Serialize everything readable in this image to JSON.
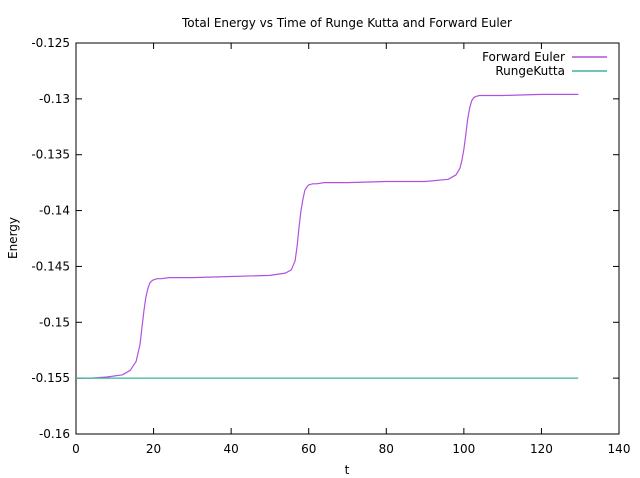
{
  "chart_data": {
    "type": "line",
    "title": "Total Energy vs Time of Runge Kutta and Forward Euler",
    "xlabel": "t",
    "ylabel": "Energy",
    "xlim": [
      0,
      140
    ],
    "ylim": [
      -0.16,
      -0.125
    ],
    "xticks": [
      0,
      20,
      40,
      60,
      80,
      100,
      120,
      140
    ],
    "yticks": [
      -0.16,
      -0.155,
      -0.15,
      -0.145,
      -0.14,
      -0.135,
      -0.13,
      -0.125
    ],
    "xtick_labels": [
      "0",
      "20",
      "40",
      "60",
      "80",
      "100",
      "120",
      "140"
    ],
    "ytick_labels": [
      "-0.16",
      "-0.155",
      "-0.15",
      "-0.145",
      "-0.14",
      "-0.135",
      "-0.13",
      "-0.125"
    ],
    "grid": false,
    "legend_position": "top-right",
    "series": [
      {
        "name": "Forward Euler",
        "color": "#b052e0",
        "x": [
          0,
          4,
          8,
          12,
          14,
          15.5,
          16.5,
          17,
          17.5,
          18,
          18.5,
          19,
          19.5,
          20,
          21,
          22,
          24,
          30,
          40,
          50,
          54,
          55.5,
          56.5,
          57,
          57.5,
          58,
          58.5,
          59,
          59.5,
          60,
          61,
          62,
          64,
          70,
          80,
          90,
          96,
          98,
          99,
          99.5,
          100,
          100.5,
          101,
          101.5,
          102,
          102.5,
          103,
          104,
          106,
          110,
          120,
          129.5
        ],
        "y": [
          -0.155,
          -0.155,
          -0.1549,
          -0.1547,
          -0.1543,
          -0.1535,
          -0.152,
          -0.1505,
          -0.149,
          -0.1478,
          -0.147,
          -0.1465,
          -0.1463,
          -0.1462,
          -0.1461,
          -0.1461,
          -0.146,
          -0.146,
          -0.1459,
          -0.1458,
          -0.1456,
          -0.1453,
          -0.1445,
          -0.1432,
          -0.1415,
          -0.14,
          -0.139,
          -0.1382,
          -0.1379,
          -0.1377,
          -0.1376,
          -0.1376,
          -0.1375,
          -0.1375,
          -0.1374,
          -0.1374,
          -0.1372,
          -0.1368,
          -0.1362,
          -0.1355,
          -0.1345,
          -0.1332,
          -0.1318,
          -0.1308,
          -0.1302,
          -0.1299,
          -0.1298,
          -0.1297,
          -0.1297,
          -0.1297,
          -0.1296,
          -0.1296
        ]
      },
      {
        "name": "RungeKutta",
        "color": "#3db39a",
        "x": [
          0,
          129.5
        ],
        "y": [
          -0.155,
          -0.155
        ]
      }
    ]
  }
}
